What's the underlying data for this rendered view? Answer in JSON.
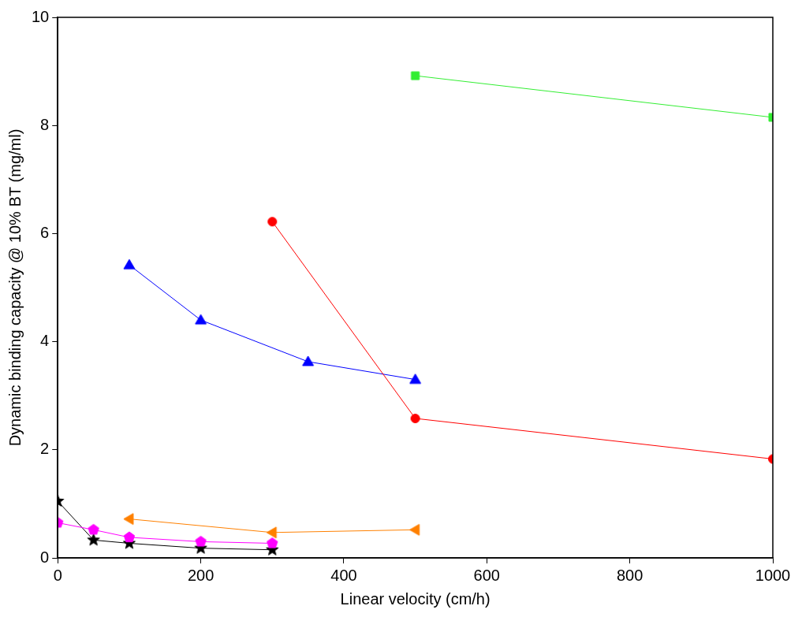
{
  "chart_data": {
    "type": "line",
    "x_label": "Linear velocity (cm/h)",
    "y_label": "Dynamic binding capacity @ 10% BT (mg/ml)",
    "xlim": [
      0,
      1000
    ],
    "xticks": [
      0,
      200,
      400,
      600,
      800,
      1000
    ],
    "ylim": [
      0,
      10
    ],
    "yticks": [
      0,
      2,
      4,
      6,
      8,
      10
    ],
    "grid": false,
    "series": [
      {
        "color": "#33ee33",
        "marker": "square",
        "x": [
          500,
          1000
        ],
        "values": [
          8.92,
          8.15
        ]
      },
      {
        "color": "#ff0000",
        "marker": "circle",
        "x": [
          300,
          500,
          1000
        ],
        "values": [
          6.22,
          2.58,
          1.83
        ]
      },
      {
        "color": "#0000ff",
        "marker": "triangle",
        "x": [
          100,
          200,
          350,
          500
        ],
        "values": [
          5.42,
          4.4,
          3.63,
          3.3
        ]
      },
      {
        "color": "#ff8000",
        "marker": "triangle-left",
        "x": [
          100,
          300,
          500
        ],
        "values": [
          0.72,
          0.47,
          0.52
        ]
      },
      {
        "color": "#ff00ff",
        "marker": "pentagon",
        "x": [
          0,
          50,
          100,
          200,
          300
        ],
        "values": [
          0.65,
          0.52,
          0.38,
          0.3,
          0.27
        ]
      },
      {
        "color": "#000000",
        "marker": "star",
        "x": [
          0,
          50,
          100,
          200,
          300
        ],
        "values": [
          1.05,
          0.33,
          0.27,
          0.18,
          0.15
        ]
      }
    ]
  }
}
